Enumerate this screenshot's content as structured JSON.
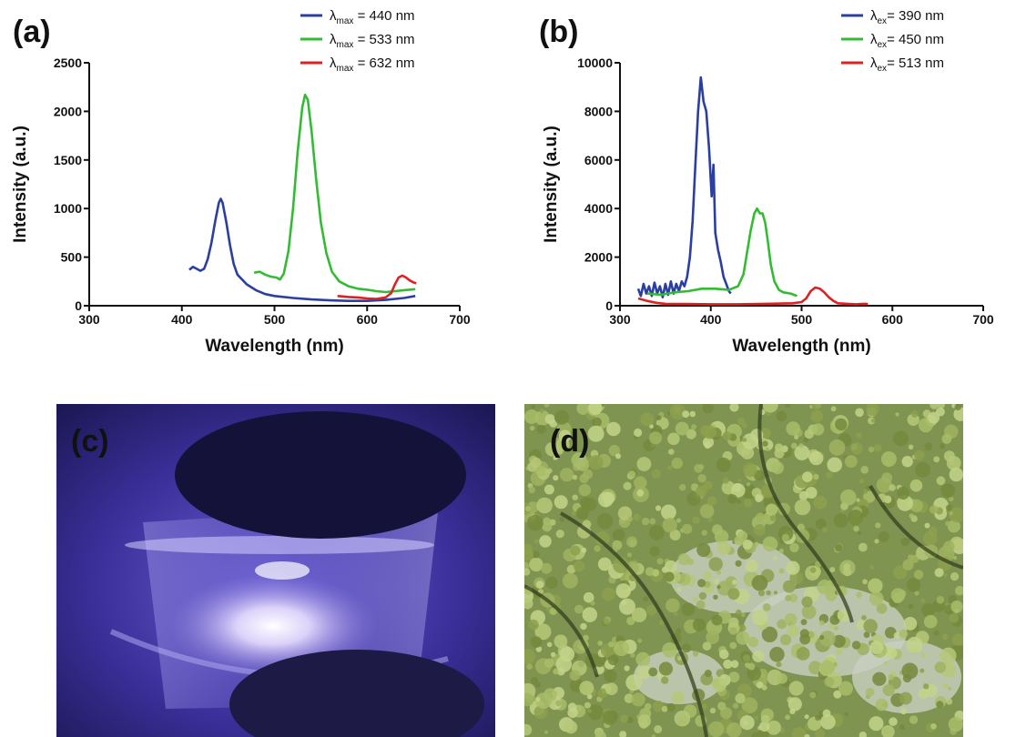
{
  "panels": {
    "a": "(a)",
    "b": "(b)",
    "c": "(c)",
    "d": "(d)"
  },
  "chart_data": [
    {
      "id": "a",
      "type": "line",
      "xlabel": "Wavelength (nm)",
      "ylabel": "Intensity (a.u.)",
      "xlim": [
        300,
        700
      ],
      "ylim": [
        0,
        2500
      ],
      "xticks": [
        300,
        400,
        500,
        600,
        700
      ],
      "yticks": [
        0,
        500,
        1000,
        1500,
        2000,
        2500
      ],
      "grid": false,
      "legend_position": "top-right",
      "series": [
        {
          "legend_symbol": "λ",
          "legend_sub": "max",
          "legend_value": " = 440 nm",
          "color": "#2b3fa0",
          "points": [
            [
              408,
              370
            ],
            [
              412,
              400
            ],
            [
              416,
              380
            ],
            [
              420,
              360
            ],
            [
              424,
              380
            ],
            [
              428,
              480
            ],
            [
              432,
              650
            ],
            [
              436,
              870
            ],
            [
              440,
              1060
            ],
            [
              442,
              1100
            ],
            [
              444,
              1060
            ],
            [
              448,
              860
            ],
            [
              452,
              620
            ],
            [
              456,
              430
            ],
            [
              460,
              320
            ],
            [
              470,
              220
            ],
            [
              480,
              160
            ],
            [
              490,
              120
            ],
            [
              500,
              100
            ],
            [
              520,
              80
            ],
            [
              540,
              65
            ],
            [
              560,
              55
            ],
            [
              580,
              50
            ],
            [
              600,
              50
            ],
            [
              620,
              60
            ],
            [
              640,
              80
            ],
            [
              652,
              100
            ]
          ]
        },
        {
          "legend_symbol": "λ",
          "legend_sub": "max",
          "legend_value": " = 533 nm",
          "color": "#33bb33",
          "points": [
            [
              478,
              340
            ],
            [
              484,
              350
            ],
            [
              490,
              320
            ],
            [
              496,
              300
            ],
            [
              502,
              290
            ],
            [
              506,
              270
            ],
            [
              510,
              330
            ],
            [
              515,
              560
            ],
            [
              520,
              1000
            ],
            [
              525,
              1580
            ],
            [
              530,
              2040
            ],
            [
              533,
              2170
            ],
            [
              536,
              2120
            ],
            [
              540,
              1800
            ],
            [
              545,
              1300
            ],
            [
              550,
              860
            ],
            [
              556,
              540
            ],
            [
              562,
              350
            ],
            [
              570,
              250
            ],
            [
              580,
              200
            ],
            [
              590,
              175
            ],
            [
              600,
              165
            ],
            [
              610,
              150
            ],
            [
              620,
              140
            ],
            [
              630,
              150
            ],
            [
              640,
              160
            ],
            [
              652,
              170
            ]
          ]
        },
        {
          "legend_symbol": "λ",
          "legend_sub": "max",
          "legend_value": " = 632 nm",
          "color": "#dd2222",
          "points": [
            [
              568,
              100
            ],
            [
              580,
              90
            ],
            [
              590,
              85
            ],
            [
              600,
              75
            ],
            [
              610,
              70
            ],
            [
              620,
              85
            ],
            [
              626,
              130
            ],
            [
              630,
              220
            ],
            [
              634,
              290
            ],
            [
              638,
              310
            ],
            [
              642,
              290
            ],
            [
              646,
              260
            ],
            [
              650,
              240
            ],
            [
              653,
              230
            ]
          ]
        }
      ]
    },
    {
      "id": "b",
      "type": "line",
      "xlabel": "Wavelength (nm)",
      "ylabel": "Intensity (a.u.)",
      "xlim": [
        300,
        700
      ],
      "ylim": [
        0,
        10000
      ],
      "xticks": [
        300,
        400,
        500,
        600,
        700
      ],
      "yticks": [
        0,
        2000,
        4000,
        6000,
        8000,
        10000
      ],
      "grid": false,
      "legend_position": "top-right",
      "series": [
        {
          "legend_symbol": "λ",
          "legend_sub": "ex",
          "legend_value": "= 390 nm",
          "color": "#2b3fa0",
          "points": [
            [
              320,
              700
            ],
            [
              323,
              400
            ],
            [
              326,
              900
            ],
            [
              329,
              500
            ],
            [
              332,
              800
            ],
            [
              335,
              400
            ],
            [
              338,
              950
            ],
            [
              341,
              500
            ],
            [
              344,
              800
            ],
            [
              347,
              350
            ],
            [
              350,
              900
            ],
            [
              353,
              450
            ],
            [
              356,
              1000
            ],
            [
              359,
              500
            ],
            [
              362,
              900
            ],
            [
              365,
              600
            ],
            [
              368,
              1000
            ],
            [
              371,
              800
            ],
            [
              374,
              1200
            ],
            [
              377,
              2000
            ],
            [
              380,
              3500
            ],
            [
              383,
              5800
            ],
            [
              386,
              8000
            ],
            [
              389,
              9400
            ],
            [
              392,
              8400
            ],
            [
              395,
              8000
            ],
            [
              398,
              6500
            ],
            [
              401,
              4500
            ],
            [
              403,
              5800
            ],
            [
              405,
              3000
            ],
            [
              408,
              2300
            ],
            [
              411,
              1800
            ],
            [
              414,
              1200
            ],
            [
              417,
              900
            ],
            [
              420,
              600
            ],
            [
              422,
              500
            ]
          ]
        },
        {
          "legend_symbol": "λ",
          "legend_sub": "ex",
          "legend_value": "= 450 nm",
          "color": "#33bb33",
          "points": [
            [
              330,
              500
            ],
            [
              345,
              450
            ],
            [
              360,
              550
            ],
            [
              375,
              600
            ],
            [
              390,
              700
            ],
            [
              405,
              700
            ],
            [
              420,
              650
            ],
            [
              430,
              800
            ],
            [
              436,
              1300
            ],
            [
              440,
              2200
            ],
            [
              444,
              3100
            ],
            [
              448,
              3800
            ],
            [
              451,
              4000
            ],
            [
              454,
              3800
            ],
            [
              457,
              3800
            ],
            [
              460,
              3400
            ],
            [
              463,
              2600
            ],
            [
              466,
              1700
            ],
            [
              470,
              1000
            ],
            [
              475,
              650
            ],
            [
              480,
              550
            ],
            [
              488,
              500
            ],
            [
              495,
              400
            ]
          ]
        },
        {
          "legend_symbol": "λ",
          "legend_sub": "ex",
          "legend_value": "= 513 nm",
          "color": "#dd2222",
          "points": [
            [
              320,
              300
            ],
            [
              330,
              200
            ],
            [
              340,
              120
            ],
            [
              350,
              80
            ],
            [
              370,
              70
            ],
            [
              400,
              60
            ],
            [
              430,
              60
            ],
            [
              460,
              80
            ],
            [
              490,
              100
            ],
            [
              500,
              150
            ],
            [
              505,
              300
            ],
            [
              510,
              600
            ],
            [
              515,
              750
            ],
            [
              520,
              700
            ],
            [
              525,
              550
            ],
            [
              530,
              350
            ],
            [
              535,
              200
            ],
            [
              540,
              100
            ],
            [
              550,
              80
            ],
            [
              560,
              60
            ],
            [
              568,
              80
            ],
            [
              573,
              70
            ]
          ]
        }
      ]
    }
  ]
}
